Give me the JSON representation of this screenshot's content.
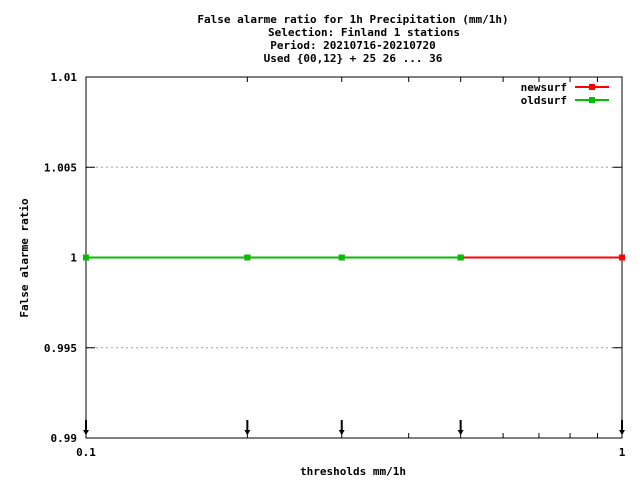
{
  "chart_data": {
    "type": "line",
    "title_lines": [
      "False alarme ratio  for 1h Precipitation (mm/1h)",
      "Selection: Finland      1 stations",
      "Period: 20210716-20210720",
      "Used {00,12} + 25 26 ... 36"
    ],
    "xlabel": "thresholds mm/1h",
    "ylabel": "False alarme ratio",
    "x_scale": "log",
    "xlim": [
      0.1,
      1
    ],
    "ylim": [
      0.99,
      1.01
    ],
    "x_tick_labels": [
      {
        "value": 0.1,
        "label": "0.1"
      },
      {
        "value": 1,
        "label": "1"
      }
    ],
    "y_ticks": [
      {
        "value": 0.99,
        "label": "0.99"
      },
      {
        "value": 0.995,
        "label": "0.995"
      },
      {
        "value": 1,
        "label": "1"
      },
      {
        "value": 1.005,
        "label": "1.005"
      },
      {
        "value": 1.01,
        "label": "1.01"
      }
    ],
    "y_gridlines": [
      0.995,
      1,
      1.005
    ],
    "legend_position": "top-right",
    "series": [
      {
        "name": "newsurf",
        "color": "#ff0000",
        "x": [
          0.1,
          0.2,
          0.3,
          0.5,
          1
        ],
        "y": [
          1,
          1,
          1,
          1,
          1
        ]
      },
      {
        "name": "oldsurf",
        "color": "#00c000",
        "x": [
          0.1,
          0.2,
          0.3,
          0.5
        ],
        "y": [
          1,
          1,
          1,
          1
        ]
      }
    ],
    "sample_markers_x": [
      0.1,
      0.2,
      0.3,
      0.5,
      1
    ],
    "sample_marker_color": "#000000"
  }
}
